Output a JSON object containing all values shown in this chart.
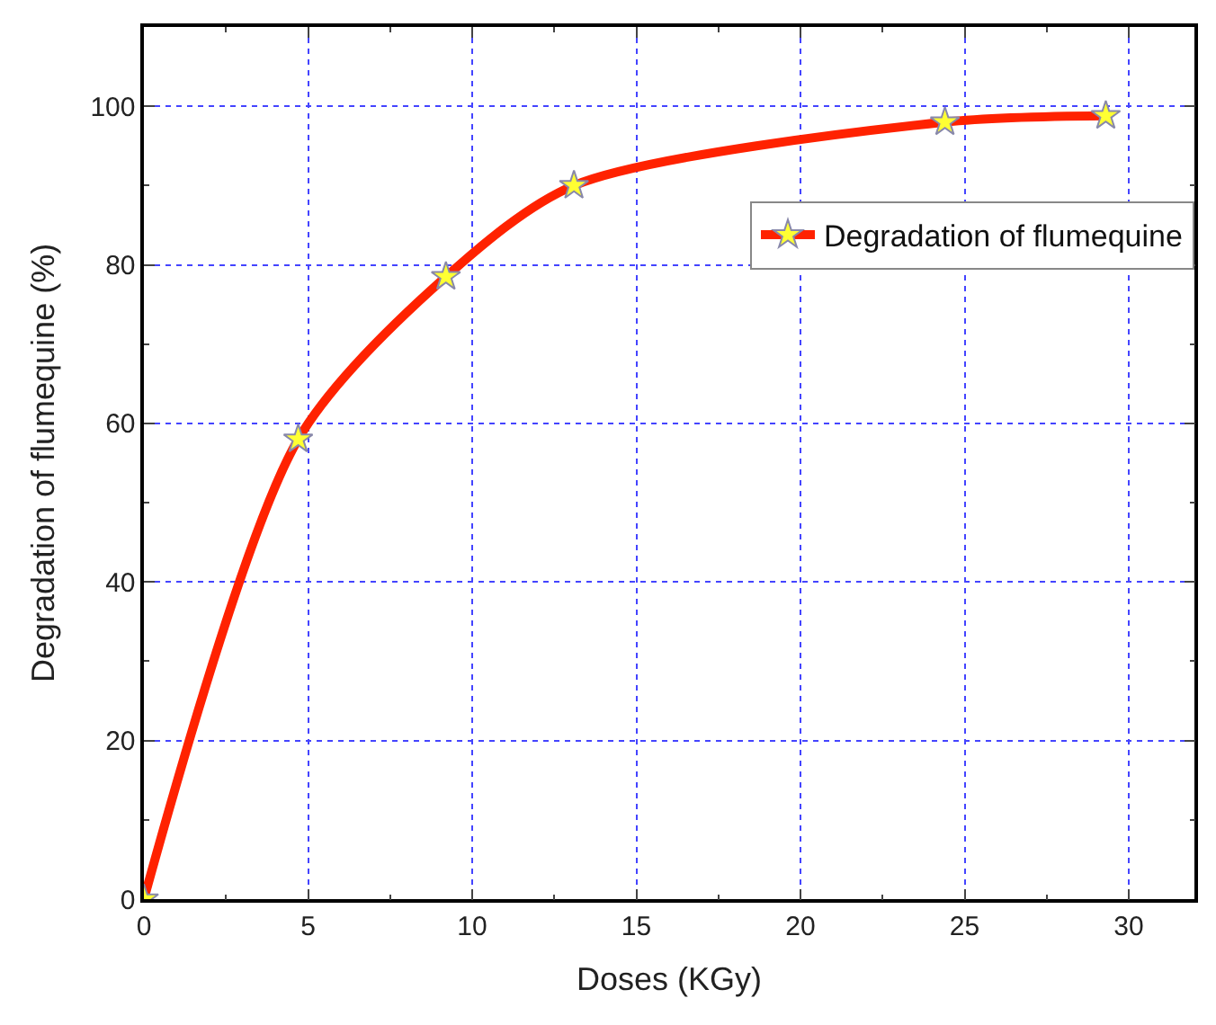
{
  "chart_data": {
    "type": "line",
    "xlabel": "Doses (KGy)",
    "ylabel": "Degradation of flumequine (%)",
    "x": [
      0,
      4.7,
      9.2,
      13.1,
      24.4,
      29.3
    ],
    "series": [
      {
        "name": "Degradation of flumequine",
        "color": "#ff2200",
        "values": [
          0,
          58,
          78.5,
          90,
          98,
          98.8
        ]
      }
    ],
    "xlim": [
      0,
      32
    ],
    "ylim": [
      0,
      110
    ],
    "xticks": [
      0,
      5,
      10,
      15,
      20,
      25,
      30
    ],
    "yticks": [
      0,
      20,
      40,
      60,
      80,
      100
    ],
    "grid": true,
    "legend": "top right",
    "marker": "star",
    "line_style": "solid"
  }
}
